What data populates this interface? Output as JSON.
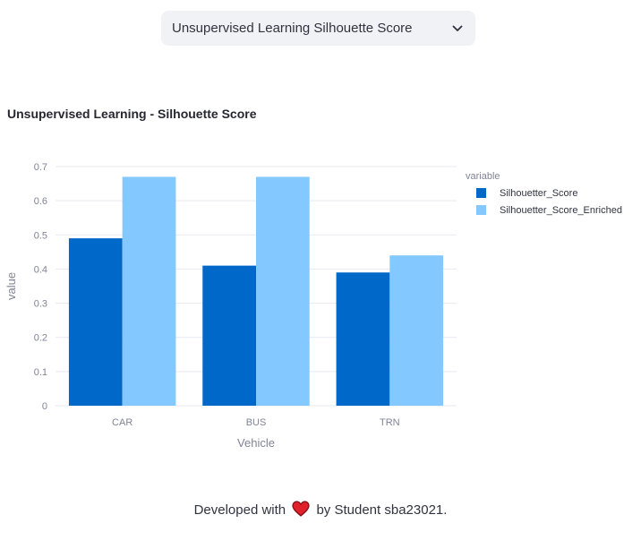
{
  "selector": {
    "value": "Unsupervised Learning Silhouette Score",
    "icon": "chevron-down-icon"
  },
  "chart_data": {
    "type": "bar",
    "title": "Unsupervised Learning - Silhouette Score",
    "xlabel": "Vehicle",
    "ylabel": "value",
    "categories": [
      "CAR",
      "BUS",
      "TRN"
    ],
    "series": [
      {
        "name": "Silhouetter_Score",
        "values": [
          0.49,
          0.41,
          0.39
        ],
        "color": "#0068c9"
      },
      {
        "name": "Silhouetter_Score_Enriched",
        "values": [
          0.67,
          0.67,
          0.44
        ],
        "color": "#83c9ff"
      }
    ],
    "ylim": [
      0,
      0.7
    ],
    "yticks": [
      "0",
      "0.1",
      "0.2",
      "0.3",
      "0.4",
      "0.5",
      "0.6",
      "0.7"
    ],
    "grid": true,
    "legend_title": "variable",
    "legend_position": "top-right"
  },
  "footer": {
    "prefix": "Developed with",
    "icon": "heart-icon",
    "suffix": "by Student sba23021."
  }
}
